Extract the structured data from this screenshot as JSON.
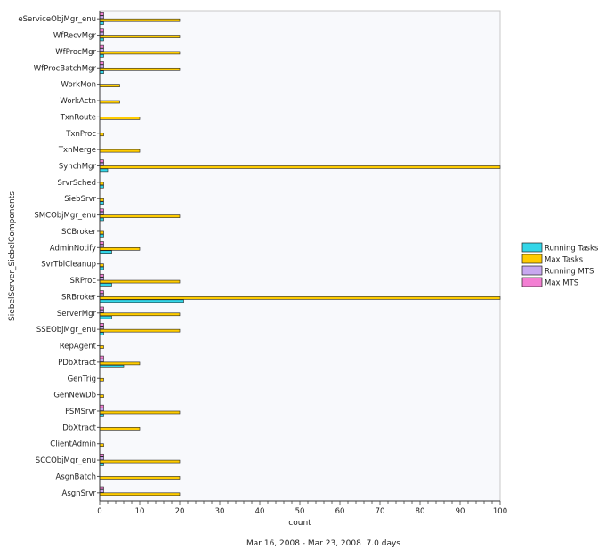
{
  "chart_data": {
    "type": "bar",
    "orientation": "horizontal",
    "ylabel": "SiebelServer_SiebelComponents",
    "xlabel": "count",
    "xlim": [
      0,
      100
    ],
    "xticks": [
      "0",
      "10",
      "20",
      "30",
      "40",
      "50",
      "60",
      "70",
      "80",
      "90",
      "100"
    ],
    "legend_position": "right",
    "grid": false,
    "categories": [
      "eServiceObjMgr_enu",
      "WfRecvMgr",
      "WfProcMgr",
      "WfProcBatchMgr",
      "WorkMon",
      "WorkActn",
      "TxnRoute",
      "TxnProc",
      "TxnMerge",
      "SynchMgr",
      "SrvrSched",
      "SiebSrvr",
      "SMCObjMgr_enu",
      "SCBroker",
      "AdminNotify",
      "SvrTblCleanup",
      "SRProc",
      "SRBroker",
      "ServerMgr",
      "SSEObjMgr_enu",
      "RepAgent",
      "PDbXtract",
      "GenTrig",
      "GenNewDb",
      "FSMSrvr",
      "DbXtract",
      "ClientAdmin",
      "SCCObjMgr_enu",
      "AsgnBatch",
      "AsgnSrvr"
    ],
    "series": [
      {
        "name": "Max MTS",
        "color": "#f37fd3",
        "values": [
          1,
          1,
          1,
          1,
          0,
          0,
          0,
          0,
          0,
          1,
          0,
          0,
          1,
          0,
          1,
          0,
          1,
          1,
          1,
          1,
          0,
          1,
          0,
          0,
          1,
          0,
          0,
          1,
          0,
          1
        ]
      },
      {
        "name": "Running MTS",
        "color": "#c8a8f0",
        "values": [
          1,
          1,
          1,
          1,
          0,
          0,
          0,
          0,
          0,
          1,
          0,
          0,
          1,
          0,
          1,
          0,
          1,
          1,
          1,
          1,
          0,
          1,
          0,
          0,
          1,
          0,
          0,
          1,
          0,
          1
        ]
      },
      {
        "name": "Max Tasks",
        "color": "#ffcc00",
        "values": [
          20,
          20,
          20,
          20,
          5,
          5,
          10,
          1,
          10,
          100,
          1,
          1,
          20,
          1,
          10,
          1,
          20,
          100,
          20,
          20,
          1,
          10,
          1,
          1,
          20,
          10,
          1,
          20,
          20,
          20
        ]
      },
      {
        "name": "Running Tasks",
        "color": "#33d6e8",
        "values": [
          1,
          1,
          1,
          1,
          0,
          0,
          0,
          0,
          0,
          2,
          1,
          1,
          1,
          1,
          3,
          1,
          3,
          21,
          3,
          1,
          0,
          6,
          0,
          0,
          1,
          0,
          0,
          1,
          0,
          0
        ]
      }
    ],
    "legend_order": [
      "Running Tasks",
      "Max Tasks",
      "Running MTS",
      "Max MTS"
    ]
  },
  "footer": {
    "date_range": "Mar 16, 2008 - Mar 23, 2008",
    "duration": "7.0 days"
  }
}
